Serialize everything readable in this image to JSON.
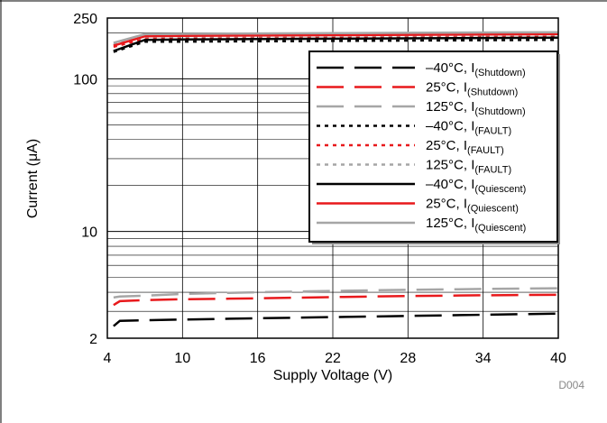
{
  "chart_data": {
    "type": "line",
    "xlabel_main": "Supply Voltage (V)",
    "ylabel_parts": [
      "Current (",
      "μ",
      "A)"
    ],
    "x_ticks": [
      "4",
      "10",
      "16",
      "22",
      "28",
      "34",
      "40"
    ],
    "y_ticks": [
      "2",
      "10",
      "100",
      "250"
    ],
    "xlim": [
      4,
      40
    ],
    "ylim": [
      2,
      250
    ],
    "y_scale": "log",
    "grid": true,
    "legend_position": "right",
    "figure_code": "D004",
    "series": [
      {
        "label_main": "–40°C, I",
        "label_sub": "(Shutdown)",
        "color": "#000000",
        "dash": "long-dash",
        "x": [
          4.5,
          5,
          7,
          10,
          16,
          22,
          28,
          34,
          40
        ],
        "y": [
          2.4,
          2.6,
          2.62,
          2.65,
          2.7,
          2.75,
          2.8,
          2.85,
          2.9
        ]
      },
      {
        "label_main": "25°C, I",
        "label_sub": "(Shutdown)",
        "color": "#e8191c",
        "dash": "long-dash",
        "x": [
          4.5,
          5,
          7,
          10,
          16,
          22,
          28,
          34,
          40
        ],
        "y": [
          3.3,
          3.5,
          3.55,
          3.6,
          3.65,
          3.72,
          3.78,
          3.82,
          3.85
        ]
      },
      {
        "label_main": "125°C, I",
        "label_sub": "(Shutdown)",
        "color": "#a6a6a6",
        "dash": "long-dash",
        "x": [
          4.5,
          5,
          7,
          10,
          16,
          22,
          28,
          34,
          40
        ],
        "y": [
          3.7,
          3.75,
          3.8,
          3.9,
          4.0,
          4.08,
          4.15,
          4.2,
          4.25
        ]
      },
      {
        "label_main": "–40°C, I",
        "label_sub": "(FAULT)",
        "color": "#000000",
        "dash": "dot",
        "x": [
          4.5,
          7,
          10,
          16,
          22,
          28,
          34,
          40
        ],
        "y": [
          150,
          175,
          175,
          176,
          177,
          178,
          179,
          180
        ]
      },
      {
        "label_main": "25°C, I",
        "label_sub": "(FAULT)",
        "color": "#e8191c",
        "dash": "dot",
        "x": [
          4.5,
          7,
          10,
          16,
          22,
          28,
          34,
          40
        ],
        "y": [
          162,
          183,
          184,
          185,
          186,
          187,
          188,
          189
        ]
      },
      {
        "label_main": "125°C, I",
        "label_sub": "(FAULT)",
        "color": "#a6a6a6",
        "dash": "dot",
        "x": [
          4.5,
          7,
          10,
          16,
          22,
          28,
          34,
          40
        ],
        "y": [
          168,
          188,
          189,
          190,
          191,
          192,
          193,
          194
        ]
      },
      {
        "label_main": "–40°C, I",
        "label_sub": "(Quiescent)",
        "color": "#000000",
        "dash": "solid",
        "x": [
          4.5,
          7,
          10,
          16,
          22,
          28,
          34,
          40
        ],
        "y": [
          152,
          180,
          181,
          182,
          183,
          184,
          185,
          186
        ]
      },
      {
        "label_main": "25°C, I",
        "label_sub": "(Quiescent)",
        "color": "#e8191c",
        "dash": "solid",
        "x": [
          4.5,
          7,
          10,
          16,
          22,
          28,
          34,
          40
        ],
        "y": [
          165,
          190,
          191,
          192,
          193,
          194,
          195,
          196
        ]
      },
      {
        "label_main": "125°C, I",
        "label_sub": "(Quiescent)",
        "color": "#a6a6a6",
        "dash": "solid",
        "x": [
          4.5,
          7,
          10,
          16,
          22,
          28,
          34,
          40
        ],
        "y": [
          172,
          196,
          197,
          198,
          199,
          200,
          201,
          202
        ]
      }
    ]
  }
}
